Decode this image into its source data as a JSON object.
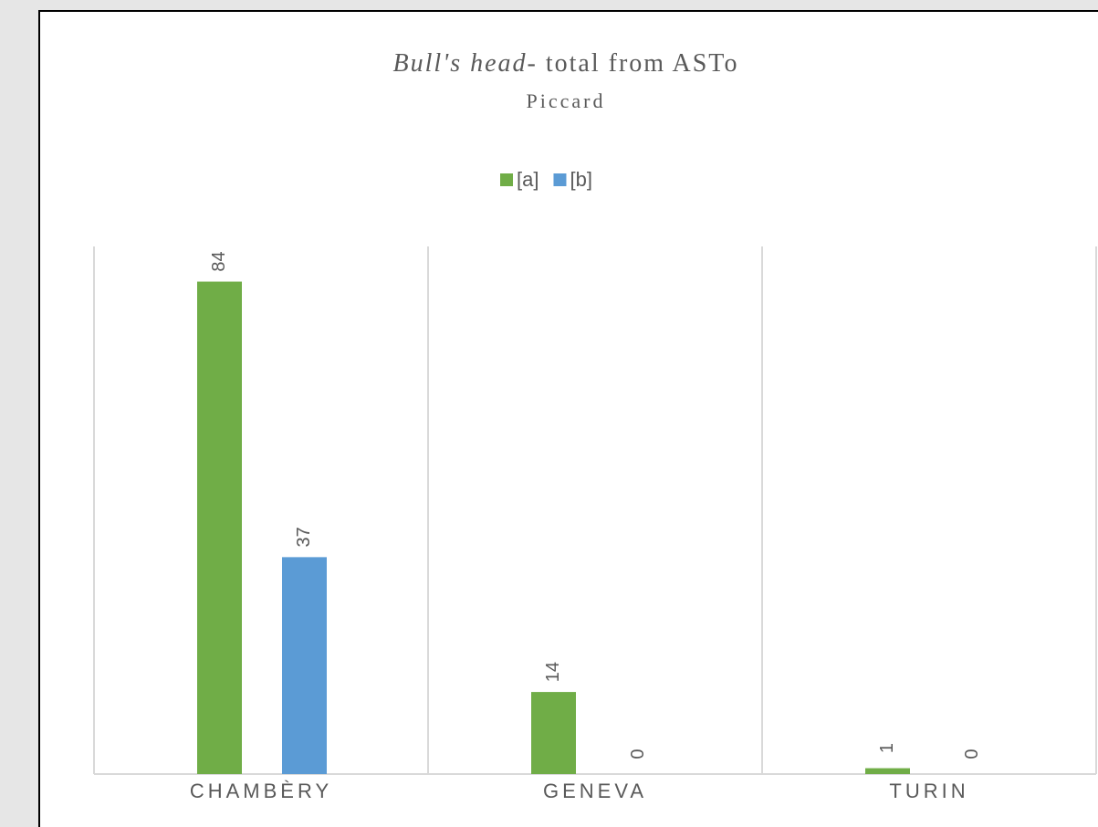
{
  "chart_data": {
    "type": "bar",
    "title": [
      "Bull's head",
      "- total from ASTo"
    ],
    "subtitle": "Piccard",
    "categories": [
      "CHAMBÈRY",
      "GENEVA",
      "TURIN"
    ],
    "series": [
      {
        "name": "[a]",
        "color": "#70ad47",
        "values": [
          84,
          14,
          1
        ]
      },
      {
        "name": "[b]",
        "color": "#5b9bd5",
        "values": [
          37,
          0,
          0
        ]
      }
    ],
    "ylim": [
      0,
      90
    ],
    "legend": "top"
  }
}
